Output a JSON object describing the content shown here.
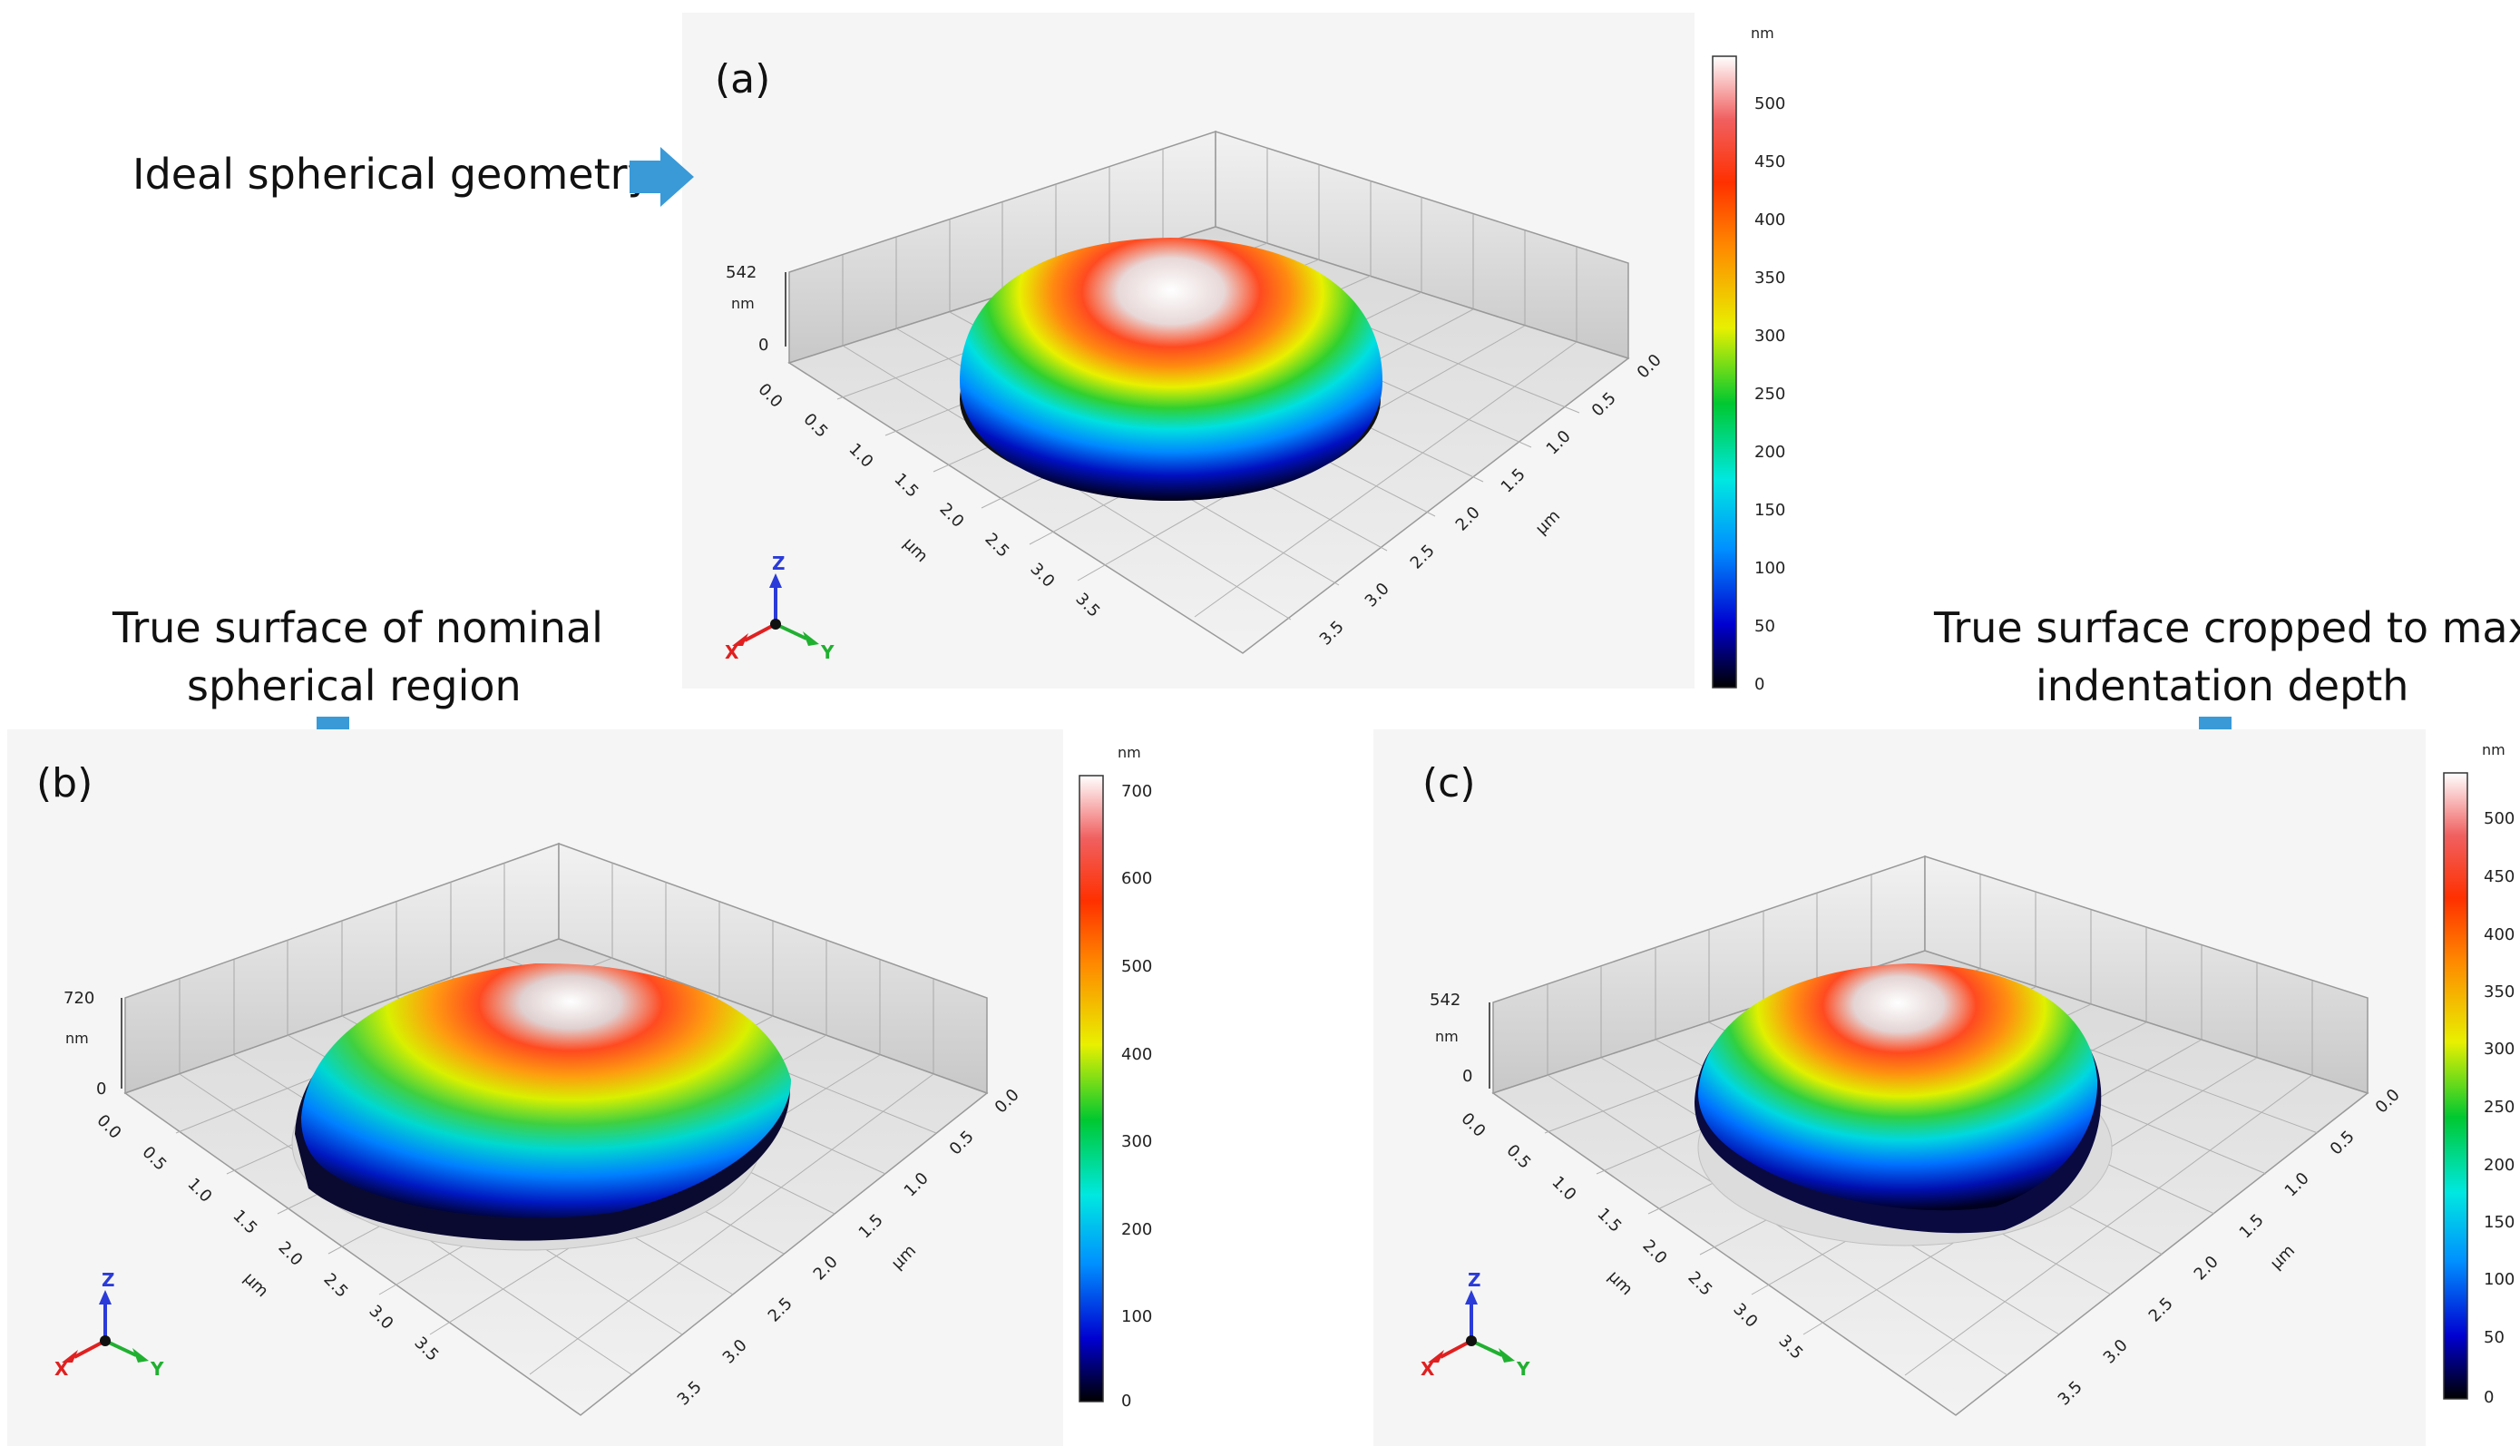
{
  "annotations": {
    "a": "Ideal spherical geometry",
    "b_line1": "True surface of nominal",
    "b_line2": "spherical region",
    "c_line1": "True surface cropped to max",
    "c_line2": "indentation depth"
  },
  "colors": {
    "arrow": "#3a9ad8",
    "panel_bg": "#f4f4f4",
    "floor": "#e6e6e6",
    "wall": "#d8d8d8"
  },
  "colormap_stops": [
    "#000000",
    "#0000d0",
    "#0090ff",
    "#00e8e0",
    "#00c830",
    "#e8f000",
    "#ff8800",
    "#ff3000",
    "#f06060",
    "#ffffff"
  ],
  "chart_data": [
    {
      "type": "heatmap",
      "panel": "(a)",
      "title": "Ideal spherical geometry",
      "z_unit": "nm",
      "z_axis_ticks": [
        "542",
        "nm",
        "0"
      ],
      "xy_unit": "µm",
      "x_ticks": [
        "0.0",
        "0.5",
        "1.0",
        "1.5",
        "2.0",
        "2.5",
        "3.0",
        "3.5"
      ],
      "y_ticks": [
        "0.0",
        "0.5",
        "1.0",
        "1.5",
        "2.0",
        "2.5",
        "3.0",
        "3.5"
      ],
      "z_range": [
        0,
        542
      ],
      "colorbar_ticks": [
        "500",
        "450",
        "400",
        "350",
        "300",
        "250",
        "200",
        "150",
        "100",
        "50",
        "0"
      ],
      "axis_triad": [
        "X",
        "Y",
        "Z"
      ]
    },
    {
      "type": "heatmap",
      "panel": "(b)",
      "title": "True surface of nominal spherical region",
      "z_unit": "nm",
      "z_axis_ticks": [
        "720",
        "nm",
        "0"
      ],
      "xy_unit": "µm",
      "x_ticks": [
        "0.0",
        "0.5",
        "1.0",
        "1.5",
        "2.0",
        "2.5",
        "3.0",
        "3.5"
      ],
      "y_ticks": [
        "0.0",
        "0.5",
        "1.0",
        "1.5",
        "2.0",
        "2.5",
        "3.0",
        "3.5"
      ],
      "z_range": [
        0,
        720
      ],
      "colorbar_ticks": [
        "700",
        "600",
        "500",
        "400",
        "300",
        "200",
        "100",
        "0"
      ],
      "axis_triad": [
        "X",
        "Y",
        "Z"
      ]
    },
    {
      "type": "heatmap",
      "panel": "(c)",
      "title": "True surface cropped to max indentation depth",
      "z_unit": "nm",
      "z_axis_ticks": [
        "542",
        "nm",
        "0"
      ],
      "xy_unit": "µm",
      "x_ticks": [
        "0.0",
        "0.5",
        "1.0",
        "1.5",
        "2.0",
        "2.5",
        "3.0",
        "3.5"
      ],
      "y_ticks": [
        "0.0",
        "0.5",
        "1.0",
        "1.5",
        "2.0",
        "2.5",
        "3.0",
        "3.5"
      ],
      "z_range": [
        0,
        542
      ],
      "colorbar_ticks": [
        "500",
        "450",
        "400",
        "350",
        "300",
        "250",
        "200",
        "150",
        "100",
        "50",
        "0"
      ],
      "axis_triad": [
        "X",
        "Y",
        "Z"
      ]
    }
  ]
}
